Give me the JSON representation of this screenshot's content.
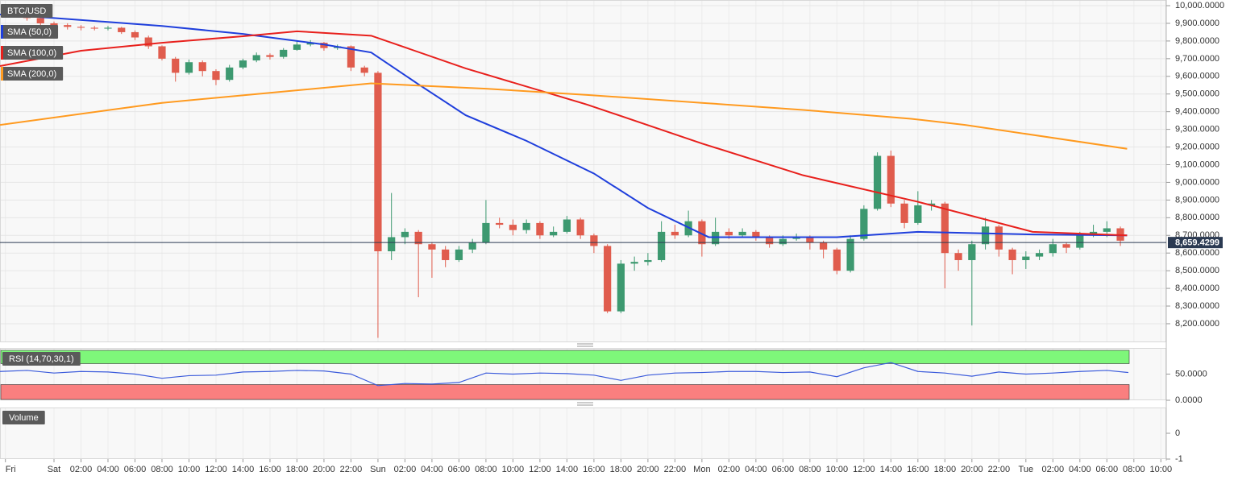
{
  "chart_data": [
    {
      "type": "candlestick",
      "title": "BTC/USD",
      "up_color": "#3d9970",
      "down_color": "#e05c4d",
      "grid": true,
      "x": [
        -3,
        -2,
        -1,
        0,
        1,
        2,
        3,
        4,
        5,
        6,
        7,
        8,
        9,
        10,
        11,
        12,
        13,
        14,
        15,
        16,
        17,
        18,
        19,
        20,
        21,
        22,
        23,
        24,
        25,
        26,
        27,
        28,
        29,
        30,
        31,
        32,
        33,
        34,
        35,
        36,
        37,
        38,
        39,
        40,
        41,
        42,
        43,
        44,
        45,
        46,
        47,
        48,
        49,
        50,
        51,
        52,
        53,
        54,
        55,
        56,
        57,
        58,
        59,
        60,
        61,
        62,
        63,
        64,
        65,
        66,
        67,
        68,
        69,
        70,
        71,
        72,
        73,
        74,
        75,
        76,
        77,
        78,
        79
      ],
      "candles": [
        [
          9985,
          10000,
          9950,
          9960
        ],
        [
          9960,
          9965,
          9915,
          9930
        ],
        [
          9930,
          9935,
          9880,
          9900
        ],
        [
          9900,
          9910,
          9870,
          9890
        ],
        [
          9890,
          9900,
          9865,
          9880
        ],
        [
          9880,
          9890,
          9860,
          9875
        ],
        [
          9875,
          9885,
          9860,
          9870
        ],
        [
          9870,
          9885,
          9860,
          9875
        ],
        [
          9875,
          9880,
          9840,
          9850
        ],
        [
          9850,
          9860,
          9805,
          9820
        ],
        [
          9820,
          9830,
          9755,
          9770
        ],
        [
          9770,
          9775,
          9690,
          9700
        ],
        [
          9700,
          9710,
          9570,
          9620
        ],
        [
          9620,
          9695,
          9610,
          9680
        ],
        [
          9680,
          9690,
          9600,
          9630
        ],
        [
          9630,
          9640,
          9550,
          9580
        ],
        [
          9580,
          9665,
          9570,
          9650
        ],
        [
          9650,
          9700,
          9640,
          9690
        ],
        [
          9690,
          9735,
          9680,
          9720
        ],
        [
          9720,
          9730,
          9695,
          9710
        ],
        [
          9710,
          9760,
          9700,
          9750
        ],
        [
          9750,
          9800,
          9745,
          9780
        ],
        [
          9780,
          9805,
          9770,
          9790
        ],
        [
          9790,
          9795,
          9745,
          9760
        ],
        [
          9760,
          9780,
          9750,
          9770
        ],
        [
          9770,
          9775,
          9630,
          9650
        ],
        [
          9650,
          9660,
          9600,
          9620
        ],
        [
          9620,
          9630,
          8120,
          8610
        ],
        [
          8610,
          8940,
          8560,
          8690
        ],
        [
          8690,
          8740,
          8650,
          8720
        ],
        [
          8720,
          8730,
          8350,
          8650
        ],
        [
          8650,
          8660,
          8460,
          8620
        ],
        [
          8620,
          8640,
          8520,
          8560
        ],
        [
          8560,
          8640,
          8550,
          8620
        ],
        [
          8620,
          8680,
          8600,
          8660
        ],
        [
          8660,
          8900,
          8650,
          8770
        ],
        [
          8770,
          8800,
          8740,
          8760
        ],
        [
          8760,
          8790,
          8700,
          8730
        ],
        [
          8730,
          8790,
          8710,
          8770
        ],
        [
          8770,
          8780,
          8680,
          8700
        ],
        [
          8700,
          8750,
          8690,
          8720
        ],
        [
          8720,
          8810,
          8710,
          8790
        ],
        [
          8790,
          8800,
          8680,
          8700
        ],
        [
          8700,
          8710,
          8600,
          8640
        ],
        [
          8640,
          8650,
          8260,
          8270
        ],
        [
          8270,
          8560,
          8260,
          8540
        ],
        [
          8540,
          8580,
          8500,
          8550
        ],
        [
          8550,
          8600,
          8530,
          8560
        ],
        [
          8560,
          8780,
          8550,
          8720
        ],
        [
          8720,
          8760,
          8680,
          8700
        ],
        [
          8700,
          8840,
          8690,
          8780
        ],
        [
          8780,
          8790,
          8580,
          8650
        ],
        [
          8650,
          8800,
          8640,
          8720
        ],
        [
          8720,
          8740,
          8680,
          8700
        ],
        [
          8700,
          8740,
          8690,
          8720
        ],
        [
          8720,
          8730,
          8670,
          8690
        ],
        [
          8690,
          8700,
          8630,
          8650
        ],
        [
          8650,
          8700,
          8640,
          8680
        ],
        [
          8680,
          8710,
          8670,
          8690
        ],
        [
          8690,
          8700,
          8620,
          8660
        ],
        [
          8660,
          8670,
          8570,
          8620
        ],
        [
          8620,
          8630,
          8480,
          8500
        ],
        [
          8500,
          8700,
          8490,
          8680
        ],
        [
          8680,
          8870,
          8670,
          8850
        ],
        [
          8850,
          9170,
          8840,
          9150
        ],
        [
          9150,
          9180,
          8860,
          8880
        ],
        [
          8880,
          8900,
          8740,
          8770
        ],
        [
          8770,
          8950,
          8760,
          8870
        ],
        [
          8870,
          8900,
          8840,
          8880
        ],
        [
          8880,
          8890,
          8400,
          8600
        ],
        [
          8600,
          8620,
          8500,
          8560
        ],
        [
          8560,
          8670,
          8190,
          8650
        ],
        [
          8650,
          8800,
          8620,
          8750
        ],
        [
          8750,
          8760,
          8580,
          8620
        ],
        [
          8620,
          8630,
          8480,
          8560
        ],
        [
          8560,
          8610,
          8510,
          8580
        ],
        [
          8580,
          8620,
          8560,
          8600
        ],
        [
          8600,
          8680,
          8580,
          8650
        ],
        [
          8650,
          8660,
          8600,
          8630
        ],
        [
          8630,
          8720,
          8620,
          8700
        ],
        [
          8700,
          8760,
          8690,
          8720
        ],
        [
          8720,
          8780,
          8690,
          8740
        ],
        [
          8740,
          8750,
          8640,
          8670
        ]
      ],
      "series": [
        {
          "name": "SMA (50,0)",
          "color": "#1f3fdc",
          "x": [
            -4,
            0,
            8,
            14,
            20,
            23.5,
            27,
            30.5,
            35,
            40,
            44,
            48.5,
            53,
            58,
            64,
            72.5,
            79.5
          ],
          "values": [
            9950,
            9930,
            9885,
            9840,
            9780,
            9735,
            9555,
            9380,
            9235,
            9050,
            8855,
            8690,
            8690,
            8690,
            8720,
            8705,
            8700
          ]
        },
        {
          "name": "SMA (100,0)",
          "color": "#e8201c",
          "x": [
            -4,
            2,
            8,
            14,
            18,
            23.5,
            30.5,
            39.5,
            48,
            55.5,
            64,
            72.5,
            79.5
          ],
          "values": [
            9658,
            9745,
            9790,
            9827,
            9855,
            9830,
            9645,
            9440,
            9220,
            9040,
            8890,
            8720,
            8700
          ]
        },
        {
          "name": "SMA (200,0)",
          "color": "#ff9a1f",
          "x": [
            -4,
            8,
            23.5,
            32,
            39.5,
            48,
            55.5,
            63.5,
            67.5,
            79.5
          ],
          "values": [
            9325,
            9450,
            9560,
            9530,
            9495,
            9450,
            9410,
            9360,
            9325,
            9190
          ]
        }
      ],
      "last": {
        "value": 8659.4299,
        "label": "8,659.4299"
      },
      "xlim": [
        -4,
        82.4
      ],
      "ylim": [
        8095,
        10032
      ],
      "yticks": [
        {
          "value": 10000,
          "label": "10,000.0000"
        },
        {
          "value": 9900,
          "label": "9,900.0000"
        },
        {
          "value": 9800,
          "label": "9,800.0000"
        },
        {
          "value": 9700,
          "label": "9,700.0000"
        },
        {
          "value": 9600,
          "label": "9,600.0000"
        },
        {
          "value": 9500,
          "label": "9,500.0000"
        },
        {
          "value": 9400,
          "label": "9,400.0000"
        },
        {
          "value": 9300,
          "label": "9,300.0000"
        },
        {
          "value": 9200,
          "label": "9,200.0000"
        },
        {
          "value": 9100,
          "label": "9,100.0000"
        },
        {
          "value": 9000,
          "label": "9,000.0000"
        },
        {
          "value": 8900,
          "label": "8,900.0000"
        },
        {
          "value": 8800,
          "label": "8,800.0000"
        },
        {
          "value": 8700,
          "label": "8,700.0000"
        },
        {
          "value": 8600,
          "label": "8,600.0000"
        },
        {
          "value": 8500,
          "label": "8,500.0000"
        },
        {
          "value": 8400,
          "label": "8,400.0000"
        },
        {
          "value": 8300,
          "label": "8,300.0000"
        },
        {
          "value": 8200,
          "label": "8,200.0000"
        }
      ],
      "xticks": [
        {
          "value": -3.6,
          "label": "Fri"
        },
        {
          "value": 0,
          "label": "Sat"
        },
        {
          "value": 2,
          "label": "02:00"
        },
        {
          "value": 4,
          "label": "04:00"
        },
        {
          "value": 6,
          "label": "06:00"
        },
        {
          "value": 8,
          "label": "08:00"
        },
        {
          "value": 10,
          "label": "10:00"
        },
        {
          "value": 12,
          "label": "12:00"
        },
        {
          "value": 14,
          "label": "14:00"
        },
        {
          "value": 16,
          "label": "16:00"
        },
        {
          "value": 18,
          "label": "18:00"
        },
        {
          "value": 20,
          "label": "20:00"
        },
        {
          "value": 22,
          "label": "22:00"
        },
        {
          "value": 24,
          "label": "Sun"
        },
        {
          "value": 26,
          "label": "02:00"
        },
        {
          "value": 28,
          "label": "04:00"
        },
        {
          "value": 30,
          "label": "06:00"
        },
        {
          "value": 32,
          "label": "08:00"
        },
        {
          "value": 34,
          "label": "10:00"
        },
        {
          "value": 36,
          "label": "12:00"
        },
        {
          "value": 38,
          "label": "14:00"
        },
        {
          "value": 40,
          "label": "16:00"
        },
        {
          "value": 42,
          "label": "18:00"
        },
        {
          "value": 44,
          "label": "20:00"
        },
        {
          "value": 46,
          "label": "22:00"
        },
        {
          "value": 48,
          "label": "Mon"
        },
        {
          "value": 50,
          "label": "02:00"
        },
        {
          "value": 52,
          "label": "04:00"
        },
        {
          "value": 54,
          "label": "06:00"
        },
        {
          "value": 56,
          "label": "08:00"
        },
        {
          "value": 58,
          "label": "10:00"
        },
        {
          "value": 60,
          "label": "12:00"
        },
        {
          "value": 62,
          "label": "14:00"
        },
        {
          "value": 64,
          "label": "16:00"
        },
        {
          "value": 66,
          "label": "18:00"
        },
        {
          "value": 68,
          "label": "20:00"
        },
        {
          "value": 70,
          "label": "22:00"
        },
        {
          "value": 72,
          "label": "Tue"
        },
        {
          "value": 74,
          "label": "02:00"
        },
        {
          "value": 76,
          "label": "04:00"
        },
        {
          "value": 78,
          "label": "06:00"
        },
        {
          "value": 80,
          "label": "08:00"
        },
        {
          "value": 82,
          "label": "10:00"
        }
      ]
    },
    {
      "type": "line",
      "title": "RSI (14,70,30,1)",
      "color": "#3b5bdb",
      "levels": [
        70,
        30
      ],
      "level_colors": [
        "#7ef77a",
        "#fa7f7f"
      ],
      "x": [
        -4,
        -2,
        0,
        2,
        4,
        6,
        8,
        10,
        12,
        14,
        16,
        18,
        20,
        22,
        24,
        26,
        28,
        30,
        32,
        34,
        36,
        38,
        40,
        42,
        44,
        46,
        48,
        50,
        52,
        54,
        56,
        58,
        60,
        62,
        64,
        66,
        68,
        70,
        72,
        74,
        76,
        78,
        80
      ],
      "values": [
        55,
        57,
        52,
        55,
        54,
        50,
        42,
        47,
        48,
        54,
        55,
        57,
        56,
        50,
        28,
        32,
        31,
        34,
        52,
        50,
        52,
        51,
        48,
        38,
        48,
        52,
        53,
        55,
        55,
        53,
        54,
        45,
        62,
        72,
        55,
        52,
        46,
        54,
        50,
        52,
        55,
        57,
        53
      ],
      "ylim": [
        0,
        100
      ],
      "yticks": [
        {
          "value": 50,
          "label": "50.0000"
        },
        {
          "value": 0,
          "label": "0.0000"
        }
      ]
    },
    {
      "type": "bar",
      "title": "Volume",
      "ylim": [
        -1,
        1
      ],
      "yticks": [
        0,
        -1
      ]
    }
  ]
}
